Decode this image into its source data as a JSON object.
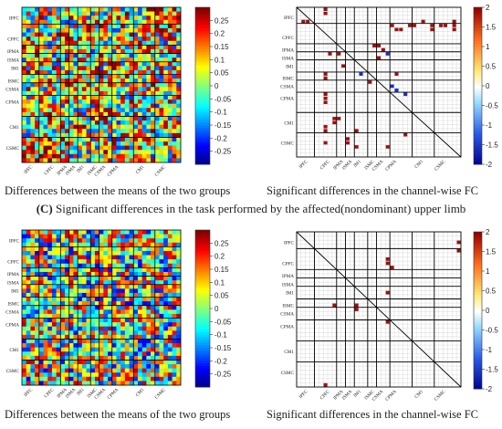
{
  "section_c": {
    "letter": "(C)",
    "text": " Significant differences in the task performed by the affected(nondominant) upper limb"
  },
  "chart_data": [
    {
      "id": "top-left",
      "type": "heatmap",
      "caption": "Differences between the means of the two groups",
      "row_labels": [
        "IPFC",
        "CPFC",
        "IPMA",
        "ISMA",
        "IM1",
        "ISMC",
        "CSMA",
        "CPMA",
        "CM1",
        "CSMC"
      ],
      "col_labels": [
        "IPFC",
        "CPFC",
        "IPMA",
        "ISMA",
        "IM1",
        "ISMC",
        "CSMA",
        "CPMA",
        "CM1",
        "CSMC"
      ],
      "colorbar": {
        "ticks": [
          0.25,
          0.2,
          0.15,
          0.1,
          0.05,
          0,
          -0.05,
          -0.1,
          -0.15,
          -0.2,
          -0.25
        ],
        "range": [
          -0.3,
          0.3
        ]
      },
      "grid_size": 37,
      "seed": 11,
      "bias": 0.05
    },
    {
      "id": "top-right",
      "type": "heatmap",
      "caption": "Significant differences in the channel-wise FC",
      "row_labels": [
        "IPFC",
        "CPFC",
        "IPMA",
        "ISMA",
        "IM1",
        "ISMC",
        "CSMA",
        "CPMA",
        "CM1",
        "CSMC"
      ],
      "col_labels": [
        "IPFC",
        "CPFC",
        "IPMA",
        "ISMA",
        "IM1",
        "ISMC",
        "CSMA",
        "CPMA",
        "CM1",
        "CSMC"
      ],
      "colorbar": {
        "ticks": [
          2,
          1.5,
          1,
          0.5,
          0,
          -0.5,
          -1,
          -1.5,
          -2
        ],
        "range": [
          -2,
          2
        ]
      },
      "significant_cells": [
        {
          "r": 0,
          "c": 6
        },
        {
          "r": 1,
          "c": 6
        },
        {
          "r": 3,
          "c": 1
        },
        {
          "r": 3,
          "c": 2
        },
        {
          "r": 3,
          "c": 28
        },
        {
          "r": 3,
          "c": 35
        },
        {
          "r": 4,
          "c": 21
        },
        {
          "r": 4,
          "c": 25
        },
        {
          "r": 4,
          "c": 26
        },
        {
          "r": 4,
          "c": 30
        },
        {
          "r": 4,
          "c": 32
        },
        {
          "r": 4,
          "c": 33
        },
        {
          "r": 4,
          "c": 35
        },
        {
          "r": 5,
          "c": 22
        },
        {
          "r": 5,
          "c": 23
        },
        {
          "r": 5,
          "c": 30
        },
        {
          "r": 5,
          "c": 35
        },
        {
          "r": 9,
          "c": 17
        },
        {
          "r": 9,
          "c": 18
        },
        {
          "r": 10,
          "c": 19
        },
        {
          "r": 11,
          "c": 7
        },
        {
          "r": 11,
          "c": 9
        },
        {
          "r": 12,
          "c": 18
        },
        {
          "r": 14,
          "c": 10
        },
        {
          "r": 16,
          "c": 6
        },
        {
          "r": 16,
          "c": 22
        },
        {
          "r": 17,
          "c": 6
        },
        {
          "r": 18,
          "c": 16
        },
        {
          "r": 21,
          "c": 6
        },
        {
          "r": 22,
          "c": 6
        },
        {
          "r": 23,
          "c": 6
        },
        {
          "r": 27,
          "c": 8
        },
        {
          "r": 27,
          "c": 9
        },
        {
          "r": 28,
          "c": 8
        },
        {
          "r": 29,
          "c": 6
        },
        {
          "r": 30,
          "c": 6
        },
        {
          "r": 30,
          "c": 13
        },
        {
          "r": 31,
          "c": 24
        },
        {
          "r": 32,
          "c": 11
        },
        {
          "r": 33,
          "c": 6
        },
        {
          "r": 33,
          "c": 11
        },
        {
          "r": 34,
          "c": 13
        },
        {
          "r": 34,
          "c": 20
        }
      ],
      "significant_negative_cells": [
        {
          "r": 11,
          "c": 20
        },
        {
          "r": 16,
          "c": 14
        },
        {
          "r": 19,
          "c": 21
        },
        {
          "r": 20,
          "c": 22
        },
        {
          "r": 21,
          "c": 24
        }
      ],
      "grid_size": 37
    },
    {
      "id": "bottom-left",
      "type": "heatmap",
      "caption": "Differences between the means of the two groups",
      "row_labels": [
        "IPFC",
        "CPFC",
        "IPMA",
        "ISMA",
        "IM1",
        "ISMC",
        "CSMA",
        "CPMA",
        "CM1",
        "CSMC"
      ],
      "col_labels": [
        "IPFC",
        "CPFC",
        "IPMA",
        "ISMA",
        "IM1",
        "ISMC",
        "CSMA",
        "CPMA",
        "CM1",
        "CSMC"
      ],
      "colorbar": {
        "ticks": [
          0.25,
          0.2,
          0.15,
          0.1,
          0.05,
          0,
          -0.05,
          -0.1,
          -0.15,
          -0.2,
          -0.25
        ],
        "range": [
          -0.3,
          0.3
        ]
      },
      "grid_size": 37,
      "seed": 29,
      "bias": 0.02
    },
    {
      "id": "bottom-right",
      "type": "heatmap",
      "caption": "Significant differences in the channel-wise FC",
      "row_labels": [
        "IPFC",
        "CPFC",
        "IPMA",
        "ISMA",
        "IM1",
        "ISMC",
        "CSMA",
        "CPMA",
        "CM1",
        "CSMC"
      ],
      "col_labels": [
        "IPFC",
        "CPFC",
        "IPMA",
        "ISMA",
        "IM1",
        "ISMC",
        "CSMA",
        "CPMA",
        "CM1",
        "CSMC"
      ],
      "colorbar": {
        "ticks": [
          2,
          1.5,
          1,
          0.5,
          0,
          -0.5,
          -1,
          -1.5,
          -2
        ],
        "range": [
          -2,
          2
        ]
      },
      "significant_cells": [
        {
          "r": 2,
          "c": 36
        },
        {
          "r": 4,
          "c": 36
        },
        {
          "r": 6,
          "c": 20
        },
        {
          "r": 7,
          "c": 20
        },
        {
          "r": 8,
          "c": 21
        },
        {
          "r": 14,
          "c": 20
        },
        {
          "r": 17,
          "c": 8
        },
        {
          "r": 17,
          "c": 13
        },
        {
          "r": 18,
          "c": 13
        },
        {
          "r": 21,
          "c": 20
        },
        {
          "r": 36,
          "c": 6
        }
      ],
      "significant_negative_cells": [],
      "grid_size": 37
    }
  ]
}
